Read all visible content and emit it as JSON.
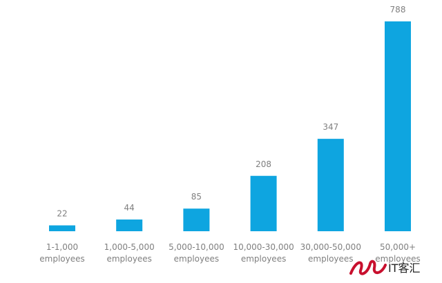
{
  "chart_data": {
    "type": "bar",
    "title": "",
    "xlabel": "",
    "ylabel": "",
    "categories": [
      [
        "1-1,000",
        "employees"
      ],
      [
        "1,000-5,000",
        "employees"
      ],
      [
        "5,000-10,000",
        "employees"
      ],
      [
        "10,000-30,000",
        "employees"
      ],
      [
        "30,000-50,000",
        "employees"
      ],
      [
        "50,000+",
        "employees"
      ]
    ],
    "values": [
      22,
      44,
      85,
      208,
      347,
      788
    ],
    "ylim": [
      0,
      788
    ],
    "bar_color": "#0ea5e0",
    "label_color": "#7f7f7f",
    "grid": false,
    "legend": "none"
  },
  "watermark": {
    "text": "IT客汇",
    "color": "#c8102e"
  }
}
